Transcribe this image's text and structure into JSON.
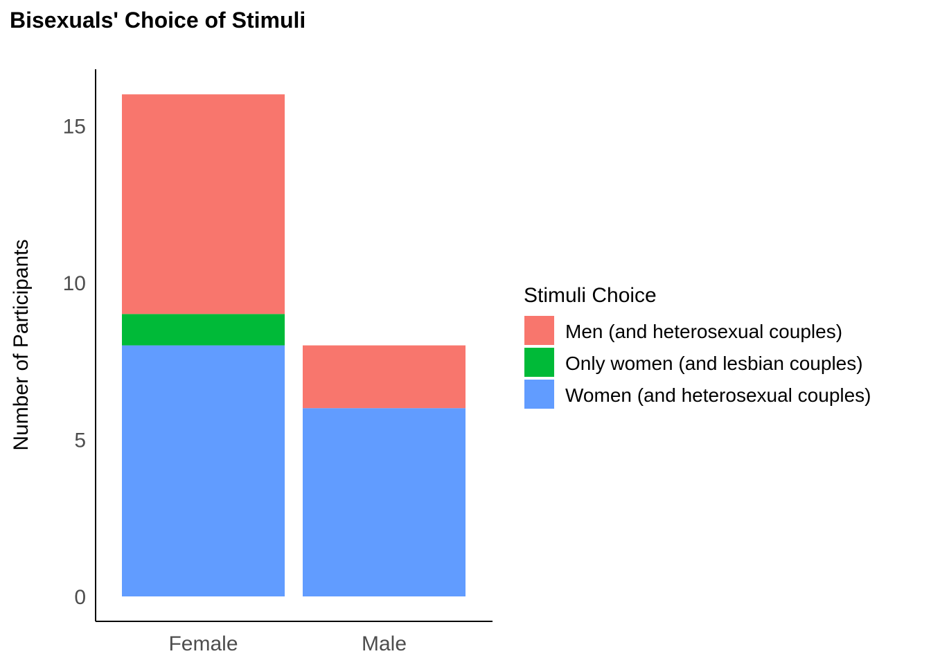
{
  "chart_data": {
    "type": "bar",
    "stacked": true,
    "title": "Bisexuals' Choice of Stimuli",
    "xlabel": "",
    "ylabel": "Number of Participants",
    "categories": [
      "Female",
      "Male"
    ],
    "ylim": [
      0,
      16.8
    ],
    "yticks": [
      0,
      5,
      10,
      15
    ],
    "legend_title": "Stimuli Choice",
    "legend_position": "right",
    "grid": false,
    "series": [
      {
        "name": "Women (and heterosexual couples)",
        "color": "#619CFF",
        "values": [
          8,
          6
        ]
      },
      {
        "name": "Only women (and lesbian couples)",
        "color": "#00BA38",
        "values": [
          1,
          0
        ]
      },
      {
        "name": "Men (and heterosexual couples)",
        "color": "#F8766D",
        "values": [
          7,
          2
        ]
      }
    ],
    "legend_order": [
      "Men (and heterosexual couples)",
      "Only women (and lesbian couples)",
      "Women (and heterosexual couples)"
    ]
  }
}
